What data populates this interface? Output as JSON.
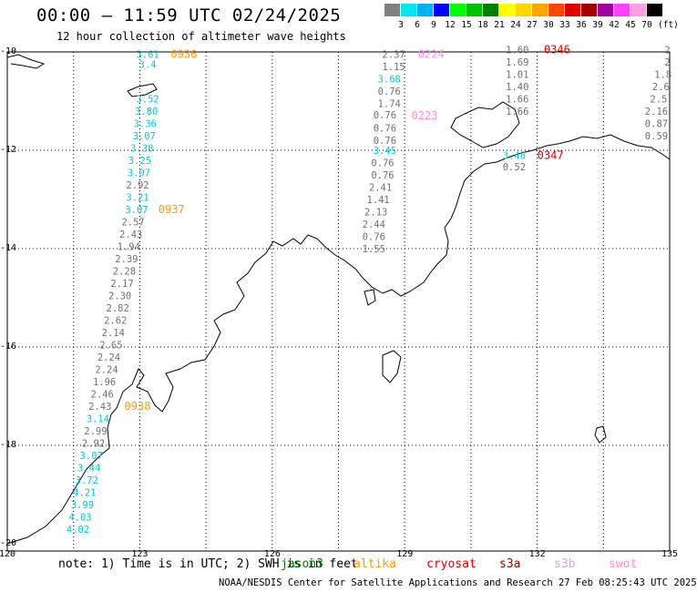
{
  "header": {
    "title": "00:00 — 11:59 UTC 02/24/2025",
    "subtitle": "12 hour collection of altimeter wave heights"
  },
  "legend": {
    "labels": [
      "3",
      "6",
      "9",
      "12",
      "15",
      "18",
      "21",
      "24",
      "27",
      "30",
      "33",
      "36",
      "39",
      "42",
      "45",
      "70"
    ],
    "unit": "(ft)",
    "colors": [
      "#808080",
      "#00e5ee",
      "#00b2ee",
      "#0000ff",
      "#00ff00",
      "#00c000",
      "#008000",
      "#ffff00",
      "#ffd700",
      "#ffa500",
      "#ff4500",
      "#e00000",
      "#a00000",
      "#a000a0",
      "#ff40ff",
      "#ff9ee0",
      "#000000"
    ]
  },
  "axes": {
    "lon_ticks": [
      "120",
      "123",
      "126",
      "129",
      "132",
      "135"
    ],
    "lat_ticks": [
      "-10",
      "-12",
      "-14",
      "-16",
      "-18",
      "-20"
    ]
  },
  "track_values": [
    {
      "t": "3.61",
      "c": "#00c8d8",
      "lon": 123.18,
      "lat": -10.05
    },
    {
      "t": "3.4",
      "c": "#00c8d8",
      "lon": 123.18,
      "lat": -10.25
    },
    {
      "t": "3.52",
      "c": "#00c8d8",
      "lon": 123.18,
      "lat": -10.95
    },
    {
      "t": "3.80",
      "c": "#00c8d8",
      "lon": 123.15,
      "lat": -11.2
    },
    {
      "t": "3.36",
      "c": "#00c8d8",
      "lon": 123.12,
      "lat": -11.45
    },
    {
      "t": "3.07",
      "c": "#00c8d8",
      "lon": 123.1,
      "lat": -11.7
    },
    {
      "t": "3.38",
      "c": "#00c8d8",
      "lon": 123.05,
      "lat": -11.95
    },
    {
      "t": "3.25",
      "c": "#00c8d8",
      "lon": 123.0,
      "lat": -12.2
    },
    {
      "t": "3.07",
      "c": "#00c8d8",
      "lon": 122.98,
      "lat": -12.45
    },
    {
      "t": "2.92",
      "c": "#707070",
      "lon": 122.95,
      "lat": -12.7
    },
    {
      "t": "3.21",
      "c": "#00c8d8",
      "lon": 122.95,
      "lat": -12.95
    },
    {
      "t": "3.07",
      "c": "#00c8d8",
      "lon": 122.93,
      "lat": -13.2
    },
    {
      "t": "2.57",
      "c": "#707070",
      "lon": 122.85,
      "lat": -13.45
    },
    {
      "t": "2.43",
      "c": "#707070",
      "lon": 122.8,
      "lat": -13.7
    },
    {
      "t": "1.94",
      "c": "#707070",
      "lon": 122.75,
      "lat": -13.95
    },
    {
      "t": "2.39",
      "c": "#707070",
      "lon": 122.7,
      "lat": -14.2
    },
    {
      "t": "2.28",
      "c": "#707070",
      "lon": 122.65,
      "lat": -14.45
    },
    {
      "t": "2.17",
      "c": "#707070",
      "lon": 122.6,
      "lat": -14.7
    },
    {
      "t": "2.30",
      "c": "#707070",
      "lon": 122.55,
      "lat": -14.95
    },
    {
      "t": "2.82",
      "c": "#707070",
      "lon": 122.5,
      "lat": -15.2
    },
    {
      "t": "2.62",
      "c": "#707070",
      "lon": 122.45,
      "lat": -15.45
    },
    {
      "t": "2.14",
      "c": "#707070",
      "lon": 122.4,
      "lat": -15.7
    },
    {
      "t": "2.65",
      "c": "#707070",
      "lon": 122.35,
      "lat": -15.95
    },
    {
      "t": "2.24",
      "c": "#707070",
      "lon": 122.3,
      "lat": -16.2
    },
    {
      "t": "2.24",
      "c": "#707070",
      "lon": 122.25,
      "lat": -16.45
    },
    {
      "t": "1.96",
      "c": "#707070",
      "lon": 122.2,
      "lat": -16.7
    },
    {
      "t": "2.46",
      "c": "#707070",
      "lon": 122.15,
      "lat": -16.95
    },
    {
      "t": "2.43",
      "c": "#707070",
      "lon": 122.1,
      "lat": -17.2
    },
    {
      "t": "3.14",
      "c": "#00c8d8",
      "lon": 122.05,
      "lat": -17.45
    },
    {
      "t": "2.99",
      "c": "#707070",
      "lon": 122.0,
      "lat": -17.7
    },
    {
      "t": "2.92",
      "c": "#707070",
      "lon": 121.95,
      "lat": -17.95
    },
    {
      "t": "3.07",
      "c": "#00c8d8",
      "lon": 121.9,
      "lat": -18.2
    },
    {
      "t": "3.44",
      "c": "#00c8d8",
      "lon": 121.85,
      "lat": -18.45
    },
    {
      "t": "3.72",
      "c": "#00c8d8",
      "lon": 121.8,
      "lat": -18.7
    },
    {
      "t": "4.21",
      "c": "#00c8d8",
      "lon": 121.75,
      "lat": -18.95
    },
    {
      "t": "3.99",
      "c": "#00c8d8",
      "lon": 121.7,
      "lat": -19.2
    },
    {
      "t": "4.03",
      "c": "#00c8d8",
      "lon": 121.65,
      "lat": -19.45
    },
    {
      "t": "4.02",
      "c": "#00c8d8",
      "lon": 121.6,
      "lat": -19.7
    },
    {
      "t": "2.37",
      "c": "#707070",
      "lon": 128.75,
      "lat": -10.05
    },
    {
      "t": "1.15",
      "c": "#707070",
      "lon": 128.75,
      "lat": -10.3
    },
    {
      "t": "3.68",
      "c": "#00c8d8",
      "lon": 128.65,
      "lat": -10.55
    },
    {
      "t": "0.76",
      "c": "#707070",
      "lon": 128.65,
      "lat": -10.8
    },
    {
      "t": "1.74",
      "c": "#707070",
      "lon": 128.65,
      "lat": -11.05
    },
    {
      "t": "0.76",
      "c": "#707070",
      "lon": 128.55,
      "lat": -11.28
    },
    {
      "t": "0.76",
      "c": "#707070",
      "lon": 128.55,
      "lat": -11.55
    },
    {
      "t": "0.76",
      "c": "#707070",
      "lon": 128.55,
      "lat": -11.8
    },
    {
      "t": "3.45",
      "c": "#00c8d8",
      "lon": 128.55,
      "lat": -12.0
    },
    {
      "t": "0.76",
      "c": "#707070",
      "lon": 128.5,
      "lat": -12.25
    },
    {
      "t": "0.76",
      "c": "#707070",
      "lon": 128.5,
      "lat": -12.5
    },
    {
      "t": "2.41",
      "c": "#707070",
      "lon": 128.45,
      "lat": -12.75
    },
    {
      "t": "1.41",
      "c": "#707070",
      "lon": 128.4,
      "lat": -13.0
    },
    {
      "t": "2.13",
      "c": "#707070",
      "lon": 128.35,
      "lat": -13.25
    },
    {
      "t": "2.44",
      "c": "#707070",
      "lon": 128.3,
      "lat": -13.5
    },
    {
      "t": "0.76",
      "c": "#707070",
      "lon": 128.3,
      "lat": -13.75
    },
    {
      "t": "1.55",
      "c": "#707070",
      "lon": 128.3,
      "lat": -14.0
    },
    {
      "t": "1.60",
      "c": "#707070",
      "lon": 131.55,
      "lat": -9.95
    },
    {
      "t": "1.69",
      "c": "#707070",
      "lon": 131.55,
      "lat": -10.2
    },
    {
      "t": "1.01",
      "c": "#707070",
      "lon": 131.55,
      "lat": -10.45
    },
    {
      "t": "1.40",
      "c": "#707070",
      "lon": 131.55,
      "lat": -10.7
    },
    {
      "t": "1.66",
      "c": "#707070",
      "lon": 131.55,
      "lat": -10.95
    },
    {
      "t": "1.66",
      "c": "#707070",
      "lon": 131.55,
      "lat": -11.2
    },
    {
      "t": "3.48",
      "c": "#00c8d8",
      "lon": 131.48,
      "lat": -12.1
    },
    {
      "t": "0.52",
      "c": "#707070",
      "lon": 131.48,
      "lat": -12.33
    },
    {
      "t": "2",
      "c": "#707070",
      "lon": 134.95,
      "lat": -9.95
    },
    {
      "t": "2",
      "c": "#707070",
      "lon": 134.95,
      "lat": -10.2
    },
    {
      "t": "1.8",
      "c": "#707070",
      "lon": 134.85,
      "lat": -10.45
    },
    {
      "t": "2.6",
      "c": "#707070",
      "lon": 134.8,
      "lat": -10.7
    },
    {
      "t": "2.5",
      "c": "#707070",
      "lon": 134.75,
      "lat": -10.95
    },
    {
      "t": "2.16",
      "c": "#707070",
      "lon": 134.7,
      "lat": -11.2
    },
    {
      "t": "0.87",
      "c": "#707070",
      "lon": 134.7,
      "lat": -11.45
    },
    {
      "t": "0.59",
      "c": "#707070",
      "lon": 134.7,
      "lat": -11.7
    }
  ],
  "pass_times": [
    {
      "t": "0936",
      "c": "#ff9900",
      "lon": 124.0,
      "lat": -10.05
    },
    {
      "t": "0937",
      "c": "#ff9900",
      "lon": 123.72,
      "lat": -13.2
    },
    {
      "t": "0938",
      "c": "#ff9900",
      "lon": 122.95,
      "lat": -17.2
    },
    {
      "t": "0224",
      "c": "#ff88dd",
      "lon": 129.6,
      "lat": -10.05
    },
    {
      "t": "0223",
      "c": "#ff88dd",
      "lon": 129.45,
      "lat": -11.3
    },
    {
      "t": "0346",
      "c": "#dd0000",
      "lon": 132.45,
      "lat": -9.95
    },
    {
      "t": "0347",
      "c": "#dd0000",
      "lon": 132.3,
      "lat": -12.1
    }
  ],
  "note": {
    "prefix": "note: 1) Time is in UTC; 2) SWH is in feet",
    "satellites": [
      {
        "label": "jason3",
        "color": "#008000"
      },
      {
        "label": "altika",
        "color": "#ff9900"
      },
      {
        "label": "cryosat",
        "color": "#dd0000"
      },
      {
        "label": "s3a",
        "color": "#990000"
      },
      {
        "label": "s3b",
        "color": "#c8a0ff"
      },
      {
        "label": "swot",
        "color": "#ff88dd"
      }
    ]
  },
  "footer": {
    "credit": "NOAA/NESDIS Center for Satellite Applications and Research   27 Feb 08:25:43 UTC 2025"
  }
}
